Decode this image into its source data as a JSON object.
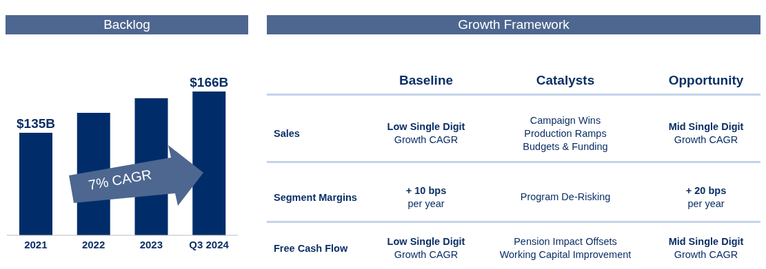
{
  "chart_data": [
    {
      "type": "bar",
      "title": "Backlog",
      "categories": [
        "2021",
        "2022",
        "2023",
        "Q3 2024"
      ],
      "values": [
        135,
        150,
        161,
        166
      ],
      "ylim": [
        58,
        166
      ],
      "value_labels": [
        "$135B",
        null,
        null,
        "$166B"
      ],
      "color": "#002d6a",
      "annotations": [
        "7% CAGR"
      ],
      "grid": false,
      "legend": false
    },
    {
      "type": "other",
      "title": "Growth Framework",
      "categories": [
        "Baseline",
        "Catalysts",
        "Opportunity"
      ],
      "y_categories": [
        "Sales",
        "Segment Margins",
        "Free Cash Flow"
      ],
      "cell_labels": [
        [
          "Low Single Digit\nGrowth CAGR",
          "Campaign Wins\nProduction Ramps\nBudgets & Funding",
          "Mid Single Digit\nGrowth CAGR"
        ],
        [
          "+ 10 bps\nper year",
          "Program De-Risking",
          "+ 20 bps\nper year"
        ],
        [
          "Low Single Digit\nGrowth CAGR",
          "Pension Impact Offsets\nWorking Capital Improvement",
          "Mid Single Digit\nGrowth CAGR"
        ]
      ]
    }
  ]
}
